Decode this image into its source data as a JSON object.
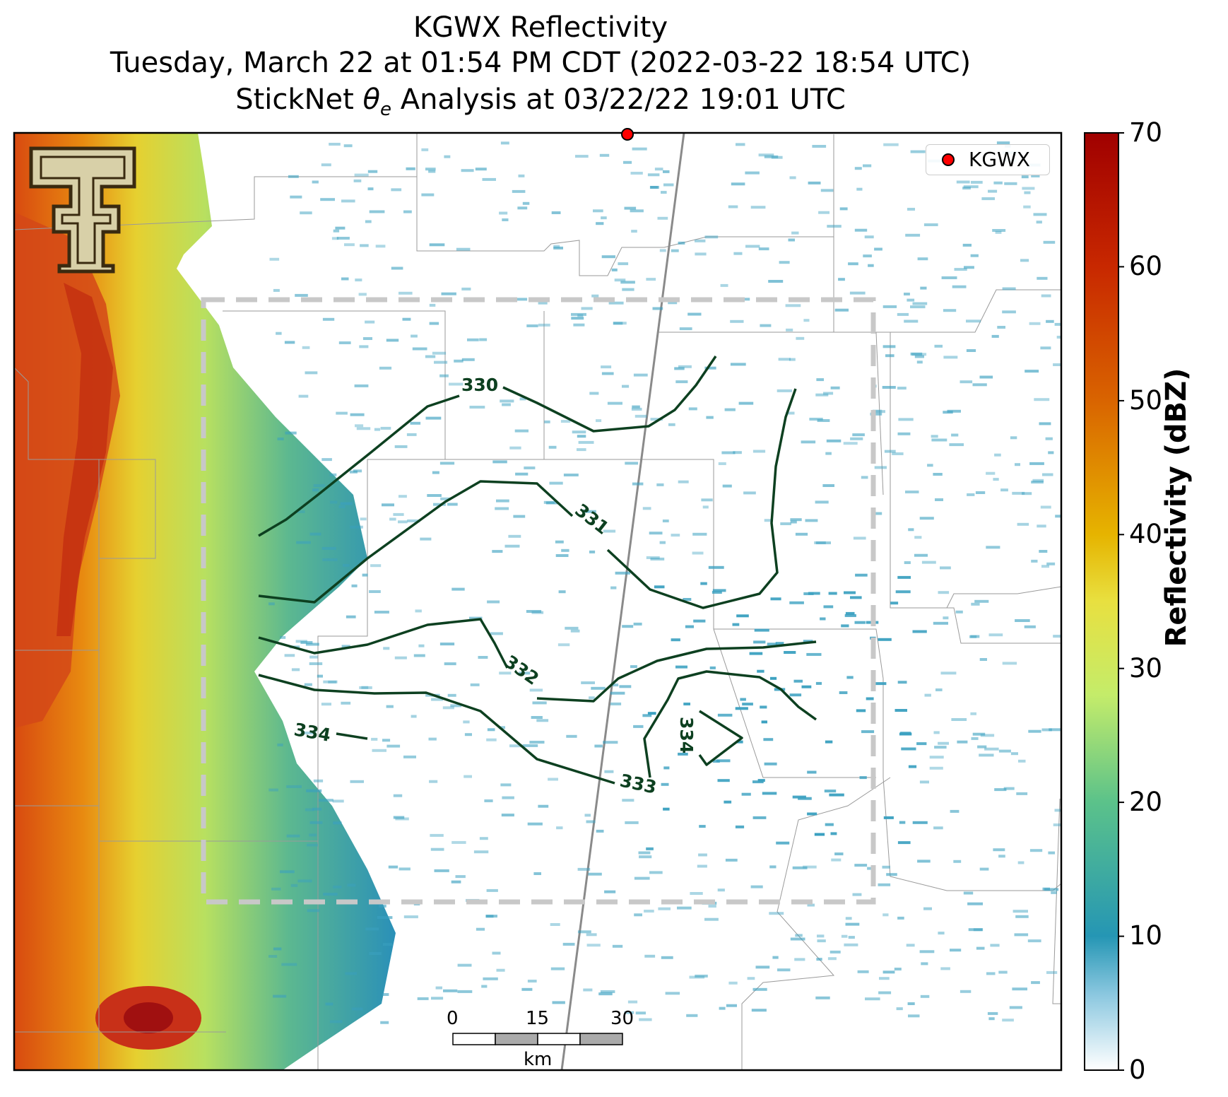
{
  "title": {
    "line1": "KGWX Reflectivity",
    "line2": "Tuesday, March 22 at 01:54 PM CDT (2022-03-22 18:54 UTC)",
    "line3_prefix": "StickNet ",
    "line3_symbol": "θ",
    "line3_subscript": "e",
    "line3_suffix": " Analysis at 03/22/22 19:01 UTC"
  },
  "legend": {
    "label": "KGWX",
    "marker_color": "#ff0000"
  },
  "colorbar": {
    "label": "Reflectivity (dBZ)",
    "min": 0,
    "max": 70,
    "ticks": [
      "0",
      "10",
      "20",
      "30",
      "40",
      "50",
      "60",
      "70"
    ],
    "colors": [
      "#ffffff",
      "#2596b4",
      "#5bc28a",
      "#d8f05a",
      "#e6b400",
      "#d96400",
      "#c82800",
      "#a00000"
    ]
  },
  "contours": {
    "variable": "theta_e",
    "color": "#0d4020",
    "labels": [
      "330",
      "331",
      "332",
      "333",
      "334",
      "334"
    ]
  },
  "scale_bar": {
    "ticks": [
      "0",
      "15",
      "30"
    ],
    "unit": "km"
  },
  "analysis_box": {
    "style": "dashed",
    "color": "#c8c8c8"
  },
  "radar_site": {
    "name": "KGWX",
    "color": "#ff0000"
  }
}
